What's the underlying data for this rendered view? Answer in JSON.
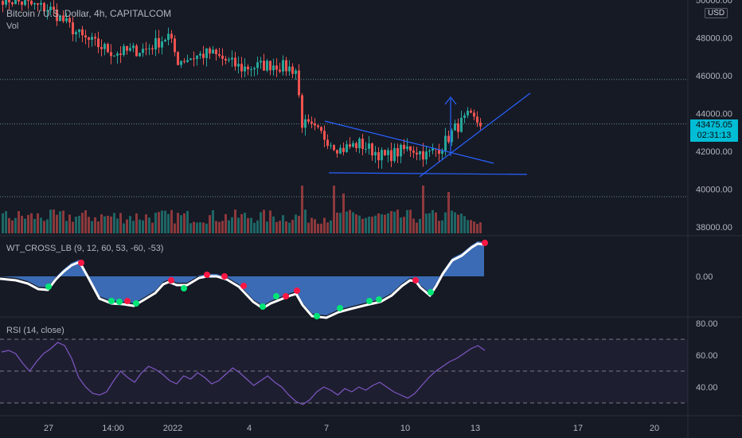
{
  "header": {
    "symbol_title": "Bitcoin / U.S. Dollar, 4h, CAPITALCOM",
    "volume_label": "Vol",
    "currency_button": "USD"
  },
  "price_badge": {
    "price": "43475.05",
    "countdown": "02:31:13",
    "color": "#00bcd4"
  },
  "indicators": {
    "wt_label": "WT_CROSS_LB (9, 12, 60, 53, -60, -53)",
    "rsi_label": "RSI (14, close)"
  },
  "colors": {
    "background": "#161a25",
    "bull": "#26a69a",
    "bear": "#ef5350",
    "wt_fill": "#3f74c4",
    "wt_line": "#ffffff",
    "rsi_line": "#7e57c2",
    "trendline": "#2962ff"
  },
  "chart_data": [
    {
      "type": "candlestick",
      "title": "Bitcoin / U.S. Dollar, 4h, CAPITALCOM",
      "y_ticks": [
        38000,
        40000,
        42000,
        44000,
        46000,
        48000,
        50000
      ],
      "ylim": [
        37600,
        50300
      ],
      "x_ticks": [
        "27",
        "14:00",
        "2022",
        "4",
        "7",
        "10",
        "13",
        "17",
        "20"
      ],
      "horizontal_levels": [
        45800,
        43450,
        39600
      ],
      "last_price": 43475.05,
      "close_path": [
        {
          "bar": 0,
          "close": 50100
        },
        {
          "bar": 15,
          "close": 49500
        },
        {
          "bar": 25,
          "close": 48000
        },
        {
          "bar": 35,
          "close": 47200
        },
        {
          "bar": 45,
          "close": 47400
        },
        {
          "bar": 52,
          "close": 48100
        },
        {
          "bar": 55,
          "close": 46800
        },
        {
          "bar": 65,
          "close": 47200
        },
        {
          "bar": 75,
          "close": 46400
        },
        {
          "bar": 85,
          "close": 46600
        },
        {
          "bar": 92,
          "close": 46300
        },
        {
          "bar": 94,
          "close": 43500
        },
        {
          "bar": 100,
          "close": 42900
        },
        {
          "bar": 106,
          "close": 42100
        },
        {
          "bar": 112,
          "close": 42400
        },
        {
          "bar": 120,
          "close": 41700
        },
        {
          "bar": 128,
          "close": 42200
        },
        {
          "bar": 133,
          "close": 41800
        },
        {
          "bar": 138,
          "close": 42300
        },
        {
          "bar": 142,
          "close": 43200
        },
        {
          "bar": 146,
          "close": 43800
        },
        {
          "bar": 150,
          "close": 43500
        }
      ]
    },
    {
      "type": "line",
      "title": "RSI (14, close)",
      "y_ticks": [
        40,
        60,
        80
      ],
      "ylim": [
        23,
        82
      ],
      "levels": [
        70,
        50,
        30
      ],
      "values": [
        62,
        63,
        61,
        55,
        50,
        56,
        61,
        64,
        68,
        66,
        58,
        46,
        40,
        36,
        35,
        37,
        44,
        50,
        46,
        43,
        49,
        53,
        51,
        48,
        44,
        42,
        47,
        45,
        49,
        46,
        42,
        44,
        48,
        52,
        49,
        45,
        41,
        44,
        47,
        43,
        40,
        35,
        31,
        29,
        32,
        37,
        40,
        38,
        35,
        39,
        37,
        40,
        38,
        41,
        43,
        40,
        37,
        35,
        33,
        36,
        41,
        46,
        50,
        53,
        56,
        58,
        61,
        64,
        66,
        63
      ]
    }
  ]
}
